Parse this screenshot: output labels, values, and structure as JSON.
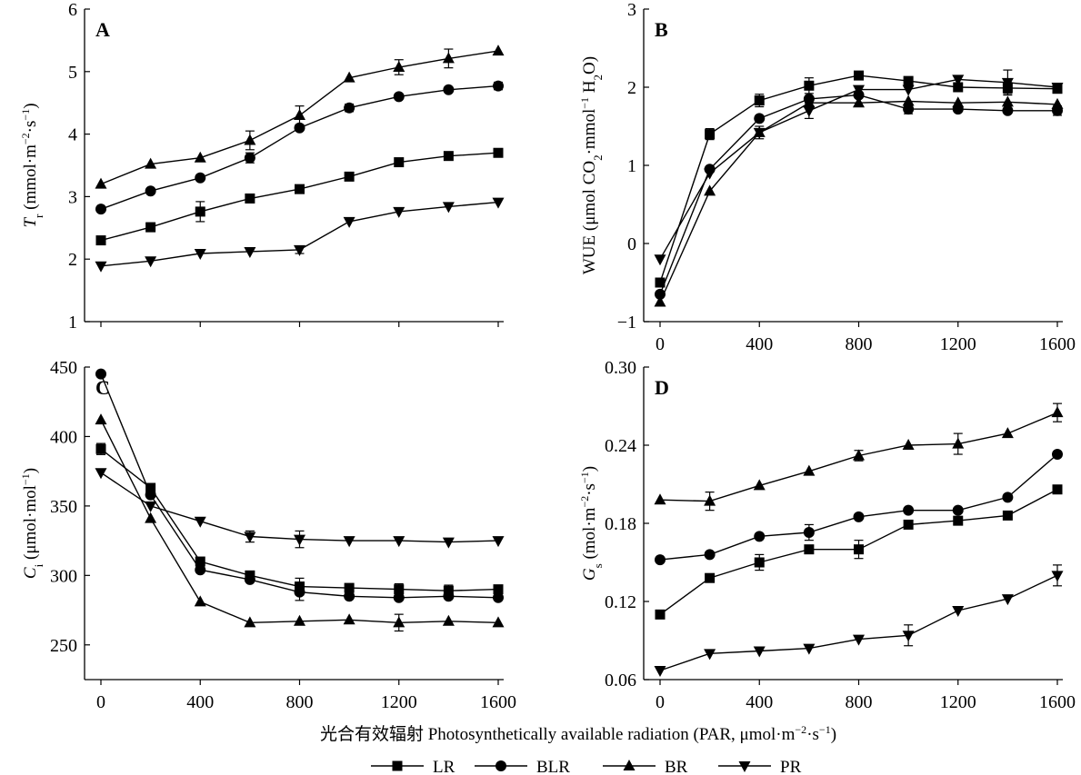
{
  "chart_data": [
    {
      "panel": "A",
      "type": "line",
      "ylabel": "T_r (mmol·m−2·s−1)",
      "ylabel_parts": [
        {
          "t": "T",
          "style": "italic"
        },
        {
          "t": "r",
          "style": "sub"
        },
        {
          "t": " (mmol·m",
          "style": "normal"
        },
        {
          "t": "−2",
          "style": "sup"
        },
        {
          "t": "·s",
          "style": "normal"
        },
        {
          "t": "−1",
          "style": "sup"
        },
        {
          "t": ")",
          "style": "normal"
        }
      ],
      "ylim": [
        1,
        6
      ],
      "yticks": [
        1,
        2,
        3,
        4,
        5,
        6
      ],
      "ytick_labels": [
        "1",
        "2",
        "3",
        "4",
        "5",
        "6"
      ],
      "show_xtick_labels": false,
      "x": [
        0,
        200,
        400,
        600,
        800,
        1000,
        1200,
        1400,
        1600
      ],
      "series": [
        {
          "name": "LR",
          "marker": "square",
          "values": [
            2.3,
            2.51,
            2.76,
            2.97,
            3.12,
            3.32,
            3.55,
            3.65,
            3.7
          ],
          "err": [
            0,
            0.07,
            0.16,
            0,
            0.06,
            0,
            0,
            0.06,
            0
          ]
        },
        {
          "name": "BLR",
          "marker": "circle",
          "values": [
            2.8,
            3.09,
            3.3,
            3.62,
            4.1,
            4.42,
            4.6,
            4.71,
            4.77
          ],
          "err": [
            0,
            0,
            0,
            0.08,
            0,
            0.06,
            0,
            0,
            0.06
          ]
        },
        {
          "name": "BR",
          "marker": "triangle-up",
          "values": [
            3.2,
            3.52,
            3.62,
            3.9,
            4.3,
            4.9,
            5.07,
            5.21,
            5.33
          ],
          "err": [
            0,
            0,
            0,
            0.15,
            0.15,
            0,
            0.12,
            0.15,
            0
          ]
        },
        {
          "name": "PR",
          "marker": "triangle-down",
          "values": [
            1.89,
            1.97,
            2.09,
            2.12,
            2.15,
            2.6,
            2.76,
            2.84,
            2.91
          ],
          "err": [
            0,
            0,
            0,
            0,
            0.06,
            0,
            0,
            0,
            0
          ]
        }
      ]
    },
    {
      "panel": "B",
      "type": "line",
      "ylabel": "WUE (μmol CO2·mmol−1 H2O)",
      "ylabel_parts": [
        {
          "t": "WUE (μmol CO",
          "style": "normal"
        },
        {
          "t": "2",
          "style": "sub"
        },
        {
          "t": "·mmol",
          "style": "normal"
        },
        {
          "t": "−1",
          "style": "sup"
        },
        {
          "t": " H",
          "style": "normal"
        },
        {
          "t": "2",
          "style": "sub"
        },
        {
          "t": "O)",
          "style": "normal"
        }
      ],
      "ylim": [
        -1,
        3
      ],
      "yticks": [
        -1,
        0,
        1,
        2,
        3
      ],
      "ytick_labels": [
        "−1",
        "0",
        "1",
        "2",
        "3"
      ],
      "show_xtick_labels": true,
      "x": [
        0,
        200,
        400,
        600,
        800,
        1000,
        1200,
        1400,
        1600
      ],
      "series": [
        {
          "name": "LR",
          "marker": "square",
          "values": [
            -0.5,
            1.4,
            1.83,
            2.02,
            2.15,
            2.08,
            2.0,
            1.99,
            1.98
          ],
          "err": [
            0,
            0.07,
            0.08,
            0.1,
            0,
            0,
            0,
            0.07,
            0
          ]
        },
        {
          "name": "BLR",
          "marker": "circle",
          "values": [
            -0.65,
            0.95,
            1.6,
            1.85,
            1.9,
            1.72,
            1.72,
            1.7,
            1.7
          ],
          "err": [
            0,
            0,
            0,
            0,
            0,
            0.06,
            0,
            0,
            0.06
          ]
        },
        {
          "name": "BR",
          "marker": "triangle-up",
          "values": [
            -0.75,
            0.67,
            1.42,
            1.8,
            1.8,
            1.82,
            1.8,
            1.81,
            1.78
          ],
          "err": [
            0,
            0,
            0,
            0,
            0,
            0,
            0,
            0,
            0
          ]
        },
        {
          "name": "PR",
          "marker": "triangle-down",
          "values": [
            -0.2,
            0.9,
            1.42,
            1.7,
            1.97,
            1.97,
            2.1,
            2.06,
            2.0
          ],
          "err": [
            0,
            0,
            0.08,
            0.1,
            0,
            0,
            0,
            0.16,
            0
          ]
        }
      ]
    },
    {
      "panel": "C",
      "type": "line",
      "ylabel": "C_i (μmol·mol−1)",
      "ylabel_parts": [
        {
          "t": "C",
          "style": "italic"
        },
        {
          "t": "i",
          "style": "sub"
        },
        {
          "t": " (μmol·mol",
          "style": "normal"
        },
        {
          "t": "−1",
          "style": "sup"
        },
        {
          "t": ")",
          "style": "normal"
        }
      ],
      "ylim": [
        225,
        450
      ],
      "yticks": [
        250,
        300,
        350,
        400,
        450
      ],
      "ytick_labels": [
        "250",
        "300",
        "350",
        "400",
        "450"
      ],
      "show_xtick_labels": true,
      "x": [
        0,
        200,
        400,
        600,
        800,
        1000,
        1200,
        1400,
        1600
      ],
      "series": [
        {
          "name": "LR",
          "marker": "square",
          "values": [
            391,
            363,
            310,
            300,
            292,
            291,
            290,
            289,
            290
          ],
          "err": [
            4,
            0,
            0,
            3,
            6,
            0,
            4,
            4,
            0
          ]
        },
        {
          "name": "BLR",
          "marker": "circle",
          "values": [
            445,
            358,
            304,
            297,
            288,
            285,
            284,
            285,
            284
          ],
          "err": [
            0,
            0,
            0,
            0,
            6,
            0,
            0,
            0,
            0
          ]
        },
        {
          "name": "BR",
          "marker": "triangle-up",
          "values": [
            412,
            341,
            281,
            266,
            267,
            268,
            266,
            267,
            266
          ],
          "err": [
            0,
            0,
            0,
            0,
            0,
            0,
            6,
            0,
            0
          ]
        },
        {
          "name": "PR",
          "marker": "triangle-down",
          "values": [
            374,
            350,
            339,
            328,
            326,
            325,
            325,
            324,
            325
          ],
          "err": [
            0,
            0,
            0,
            4,
            6,
            0,
            0,
            0,
            0
          ]
        }
      ]
    },
    {
      "panel": "D",
      "type": "line",
      "ylabel": "G_s (mol·m−2·s−1)",
      "ylabel_parts": [
        {
          "t": "G",
          "style": "italic"
        },
        {
          "t": "s",
          "style": "sub"
        },
        {
          "t": " (mol·m",
          "style": "normal"
        },
        {
          "t": "−2",
          "style": "sup"
        },
        {
          "t": "·s",
          "style": "normal"
        },
        {
          "t": "−1",
          "style": "sup"
        },
        {
          "t": ")",
          "style": "normal"
        }
      ],
      "ylim": [
        0.06,
        0.3
      ],
      "yticks": [
        0.06,
        0.12,
        0.18,
        0.24,
        0.3
      ],
      "ytick_labels": [
        "0.06",
        "0.12",
        "0.18",
        "0.24",
        "0.30"
      ],
      "show_xtick_labels": true,
      "x": [
        0,
        200,
        400,
        600,
        800,
        1000,
        1200,
        1400,
        1600
      ],
      "series": [
        {
          "name": "LR",
          "marker": "square",
          "values": [
            0.11,
            0.138,
            0.15,
            0.16,
            0.16,
            0.179,
            0.182,
            0.186,
            0.206
          ],
          "err": [
            0,
            0,
            0.006,
            0,
            0.007,
            0,
            0,
            0.003,
            0
          ]
        },
        {
          "name": "BLR",
          "marker": "circle",
          "values": [
            0.152,
            0.156,
            0.17,
            0.173,
            0.185,
            0.19,
            0.19,
            0.2,
            0.233
          ],
          "err": [
            0,
            0,
            0,
            0.006,
            0,
            0,
            0,
            0,
            0
          ]
        },
        {
          "name": "BR",
          "marker": "triangle-up",
          "values": [
            0.198,
            0.197,
            0.209,
            0.22,
            0.232,
            0.24,
            0.241,
            0.249,
            0.265
          ],
          "err": [
            0,
            0.007,
            0,
            0,
            0.004,
            0,
            0.008,
            0,
            0.007
          ]
        },
        {
          "name": "PR",
          "marker": "triangle-down",
          "values": [
            0.067,
            0.08,
            0.082,
            0.084,
            0.091,
            0.094,
            0.113,
            0.122,
            0.14
          ],
          "err": [
            0,
            0,
            0,
            0,
            0,
            0.008,
            0,
            0,
            0.008
          ]
        }
      ]
    }
  ],
  "x_ticks": [
    0,
    400,
    800,
    1200,
    1600
  ],
  "x_tick_labels": [
    "0",
    "400",
    "800",
    "1200",
    "1600"
  ],
  "xlabel": "光合有效辐射 Photosynthetically available radiation (PAR, μmol·m−2·s−1)",
  "xlabel_parts": [
    {
      "t": "光合有效辐射 Photosynthetically available radiation (PAR, μmol·m",
      "style": "normal"
    },
    {
      "t": "−2",
      "style": "sup"
    },
    {
      "t": "·s",
      "style": "normal"
    },
    {
      "t": "−1",
      "style": "sup"
    },
    {
      "t": ")",
      "style": "normal"
    }
  ],
  "legend": {
    "position": "bottom-center",
    "items": [
      {
        "label": "LR",
        "marker": "square"
      },
      {
        "label": "BLR",
        "marker": "circle"
      },
      {
        "label": "BR",
        "marker": "triangle-up"
      },
      {
        "label": "PR",
        "marker": "triangle-down"
      }
    ]
  },
  "style": {
    "line_color": "#000000",
    "marker_color": "#000000",
    "background": "#ffffff"
  }
}
